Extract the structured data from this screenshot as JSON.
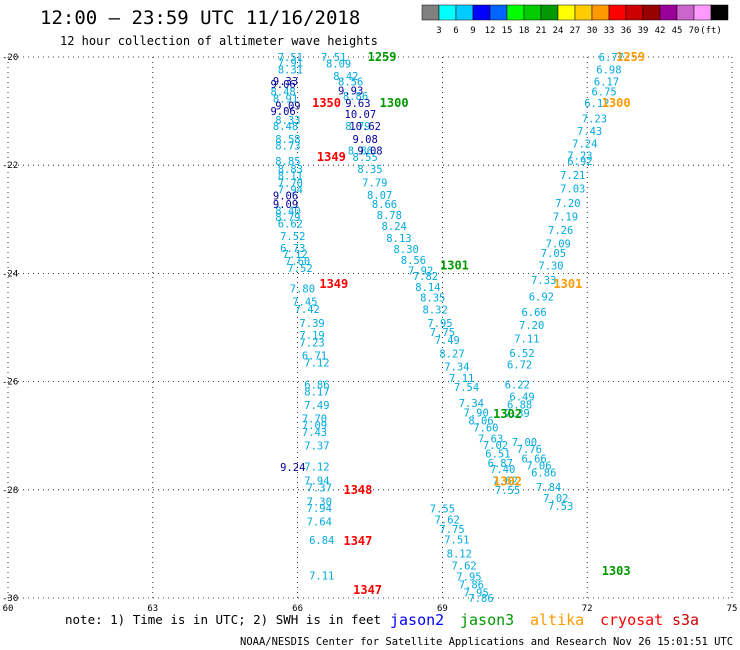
{
  "header": {
    "title": "12:00 – 23:59 UTC 11/16/2018",
    "subtitle": "12 hour collection of altimeter wave heights"
  },
  "colorbar": {
    "colors": [
      "#808080",
      "#00ffff",
      "#00ccff",
      "#0000ff",
      "#0066ff",
      "#00ff00",
      "#00cc00",
      "#009900",
      "#ffff00",
      "#ffcc00",
      "#ff9900",
      "#ff0000",
      "#cc0000",
      "#990000",
      "#990099",
      "#cc66cc",
      "#ff99ff",
      "#000000"
    ],
    "labels": [
      "3",
      "6",
      "9",
      "12",
      "15",
      "18",
      "21",
      "24",
      "27",
      "30",
      "33",
      "36",
      "39",
      "42",
      "45",
      "70",
      "(ft)"
    ]
  },
  "footer": {
    "note": "note: 1) Time is in UTC; 2) SWH is in feet",
    "satellites": [
      {
        "name": "jason2",
        "color": "#0000ff"
      },
      {
        "name": "jason3",
        "color": "#009900"
      },
      {
        "name": "altika",
        "color": "#ff9900"
      },
      {
        "name": "cryosat",
        "color": "#ff0000"
      },
      {
        "name": "s3a",
        "color": "#cc0000"
      }
    ],
    "credit": "NOAA/NESDIS Center for Satellite Applications and Research   Nov 26 15:01:51 UTC 2018"
  },
  "chart_data": {
    "type": "scatter",
    "title": "12:00 – 23:59 UTC 11/16/2018",
    "xlim": [
      60,
      75
    ],
    "ylim": [
      -30,
      -20
    ],
    "x_ticks": [
      "60",
      "63",
      "66",
      "69",
      "72",
      "75"
    ],
    "y_ticks": [
      "-20",
      "-22",
      "-24",
      "-26",
      "-28",
      "-30"
    ],
    "grid": true,
    "pass_labels": [
      {
        "text": "1259",
        "x": 67.75,
        "y": -20.0,
        "color": "#009900"
      },
      {
        "text": "1300",
        "x": 68.0,
        "y": -20.85,
        "color": "#009900"
      },
      {
        "text": "1350",
        "x": 66.6,
        "y": -20.85,
        "color": "#ff0000"
      },
      {
        "text": "1349",
        "x": 66.7,
        "y": -21.85,
        "color": "#ff0000"
      },
      {
        "text": "1301",
        "x": 69.25,
        "y": -23.85,
        "color": "#009900"
      },
      {
        "text": "1349",
        "x": 66.75,
        "y": -24.2,
        "color": "#ff0000"
      },
      {
        "text": "1301",
        "x": 71.6,
        "y": -24.2,
        "color": "#ff9900"
      },
      {
        "text": "1302",
        "x": 70.35,
        "y": -26.6,
        "color": "#009900"
      },
      {
        "text": "1302",
        "x": 70.35,
        "y": -27.85,
        "color": "#ff9900"
      },
      {
        "text": "1348",
        "x": 67.25,
        "y": -28.0,
        "color": "#ff0000"
      },
      {
        "text": "1347",
        "x": 67.25,
        "y": -28.95,
        "color": "#ff0000"
      },
      {
        "text": "1303",
        "x": 72.6,
        "y": -29.5,
        "color": "#009900"
      },
      {
        "text": "1347",
        "x": 67.45,
        "y": -29.85,
        "color": "#ff0000"
      },
      {
        "text": "1259",
        "x": 72.9,
        "y": -20.0,
        "color": "#ff9900"
      },
      {
        "text": "1300",
        "x": 72.6,
        "y": -20.85,
        "color": "#ff9900"
      }
    ],
    "series": [
      {
        "color": "#00aadd",
        "x": [
          65.85,
          65.85,
          65.85,
          65.7,
          65.75,
          65.8,
          65.75,
          65.8,
          65.8,
          65.8,
          65.85,
          65.85,
          65.85,
          65.85,
          65.8,
          65.8,
          65.85,
          65.9,
          65.9,
          65.95,
          66.0,
          66.05,
          66.1,
          66.15,
          66.2,
          66.3,
          66.3,
          66.3,
          66.35,
          66.4,
          66.4,
          66.4,
          66.4,
          66.35,
          66.35,
          66.35,
          66.4,
          66.4,
          66.4,
          66.45,
          66.45,
          66.45,
          66.45,
          66.5,
          66.5
        ],
        "y": [
          -20.0,
          -20.1,
          -20.23,
          -20.64,
          -20.77,
          -21.16,
          -21.28,
          -21.52,
          -21.64,
          -21.92,
          -22.07,
          -22.19,
          -22.33,
          -22.45,
          -22.84,
          -22.96,
          -23.08,
          -23.31,
          -23.53,
          -23.64,
          -23.77,
          -23.9,
          -24.28,
          -24.52,
          -24.66,
          -24.92,
          -25.14,
          -25.28,
          -25.52,
          -25.65,
          -26.05,
          -26.18,
          -26.43,
          -26.68,
          -26.8,
          -26.93,
          -27.18,
          -27.57,
          -27.83,
          -27.96,
          -28.22,
          -28.34,
          -28.59,
          -28.93,
          -29.58
        ],
        "labels": [
          "7.51",
          "7.91",
          "8.31",
          "8.48",
          "8.91",
          "8.33",
          "8.48",
          "8.58",
          "8.73",
          "8.85",
          "8.83",
          "8.11",
          "7.70",
          "7.94",
          "8.40",
          "8.79",
          "6.62",
          "7.52",
          "6.73",
          "7.12",
          "7.60",
          "7.52",
          "7.80",
          "7.45",
          "7.42",
          "7.39",
          "7.19",
          "7.23",
          "6.71",
          "7.12",
          "6.86",
          "8.17",
          "7.49",
          "7.70",
          "7.09",
          "7.43",
          "7.37",
          "7.12",
          "7.94",
          "7.37",
          "7.30",
          "7.94",
          "7.64",
          "6.84",
          "7.11"
        ]
      },
      {
        "color": "#000099",
        "x": [
          65.75,
          65.7,
          65.8,
          65.7,
          65.75,
          65.75,
          65.9
        ],
        "y": [
          -20.44,
          -20.5,
          -20.9,
          -21.0,
          -22.56,
          -22.72,
          -27.58
        ],
        "labels": [
          "9.33",
          "9.06",
          "9.09",
          "9.06",
          "9.06",
          "9.09",
          "9.24"
        ]
      },
      {
        "color": "#00aadd",
        "x": [
          66.75,
          66.85,
          67.0,
          67.1,
          67.2,
          67.25,
          67.3,
          67.4,
          67.5,
          67.6,
          67.7,
          67.8,
          67.9,
          68.0,
          68.1,
          68.25,
          68.4,
          68.55,
          68.65,
          68.7,
          68.8,
          68.85,
          68.95,
          69.0,
          69.1,
          69.2,
          69.3,
          69.4,
          69.5,
          69.6,
          69.7,
          69.8,
          69.9,
          70.0,
          70.1,
          70.15,
          70.2,
          70.25,
          70.3,
          70.35
        ],
        "y": [
          -20.0,
          -20.12,
          -20.35,
          -20.45,
          -20.72,
          -21.28,
          -21.73,
          -21.85,
          -22.07,
          -22.32,
          -22.55,
          -22.72,
          -22.92,
          -23.12,
          -23.35,
          -23.55,
          -23.75,
          -23.95,
          -24.05,
          -24.25,
          -24.45,
          -24.67,
          -24.92,
          -25.08,
          -25.23,
          -25.48,
          -25.72,
          -25.93,
          -26.1,
          -26.4,
          -26.57,
          -26.72,
          -26.85,
          -27.05,
          -27.17,
          -27.33,
          -27.5,
          -27.62,
          -27.83,
          -28.0
        ],
        "labels": [
          "7.51",
          "8.09",
          "8.42",
          "8.56",
          "8.86",
          "8.79",
          "8.86",
          "8.55",
          "8.35",
          "7.79",
          "8.07",
          "8.66",
          "8.78",
          "8.24",
          "8.13",
          "8.30",
          "8.56",
          "7.92",
          "7.82",
          "8.14",
          "8.35",
          "8.32",
          "7.95",
          "7.75",
          "7.49",
          "8.27",
          "7.34",
          "7.11",
          "7.54",
          "7.34",
          "7.90",
          "8.06",
          "7.60",
          "7.63",
          "7.02",
          "6.51",
          "6.87",
          "7.40",
          "7.62",
          "7.55"
        ]
      },
      {
        "color": "#000099",
        "x": [
          67.1,
          67.25,
          67.3,
          67.4,
          67.4,
          67.5
        ],
        "y": [
          -20.62,
          -20.85,
          -21.05,
          -21.28,
          -21.52,
          -21.73
        ],
        "labels": [
          "9.93",
          "9.63",
          "10.07",
          "10.62",
          "9.08",
          "9.08"
        ]
      },
      {
        "color": "#00aadd",
        "x": [
          72.5,
          72.45,
          72.4,
          72.35,
          72.2,
          72.15,
          72.05,
          71.95,
          71.85,
          71.85,
          71.7,
          71.7,
          71.6,
          71.55,
          71.45,
          71.4,
          71.3,
          71.25,
          71.1,
          71.05,
          70.9,
          70.85,
          70.75,
          70.65,
          70.6,
          70.55,
          70.65,
          70.6,
          70.55,
          70.7,
          70.8,
          70.9,
          71.0,
          71.1,
          71.2,
          71.35,
          71.45
        ],
        "y": [
          -20.0,
          -20.23,
          -20.45,
          -20.64,
          -20.85,
          -21.14,
          -21.37,
          -21.6,
          -21.82,
          -21.92,
          -22.18,
          -22.43,
          -22.7,
          -22.95,
          -23.2,
          -23.45,
          -23.62,
          -23.85,
          -24.12,
          -24.43,
          -24.71,
          -24.95,
          -25.2,
          -25.47,
          -25.68,
          -26.05,
          -26.28,
          -26.42,
          -26.58,
          -27.12,
          -27.25,
          -27.42,
          -27.55,
          -27.68,
          -27.95,
          -28.15,
          -28.3
        ],
        "labels": [
          "6.77",
          "6.98",
          "6.17",
          "6.75",
          "6.12",
          "7.23",
          "7.43",
          "7.24",
          "7.23",
          "6.92",
          "7.21",
          "7.03",
          "7.20",
          "7.19",
          "7.26",
          "7.09",
          "7.05",
          "7.30",
          "7.33",
          "6.92",
          "6.66",
          "7.20",
          "7.11",
          "6.52",
          "6.72",
          "6.22",
          "6.49",
          "6.88",
          "7.39",
          "7.00",
          "7.76",
          "6.66",
          "7.06",
          "6.86",
          "7.84",
          "7.02",
          "7.53"
        ]
      },
      {
        "color": "#00aadd",
        "x": [
          69.0,
          69.1,
          69.2,
          69.3,
          69.35,
          69.45,
          69.55,
          69.6,
          69.7,
          69.8
        ],
        "y": [
          -28.35,
          -28.55,
          -28.72,
          -28.92,
          -29.18,
          -29.4,
          -29.6,
          -29.75,
          -29.9,
          -30.0
        ],
        "labels": [
          "7.55",
          "7.62",
          "7.75",
          "7.51",
          "8.12",
          "7.62",
          "7.95",
          "7.86",
          "7.95",
          "7.86"
        ]
      }
    ]
  }
}
